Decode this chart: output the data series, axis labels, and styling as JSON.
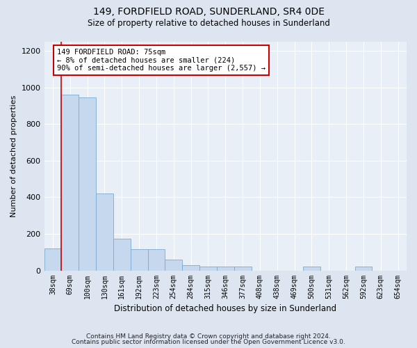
{
  "title": "149, FORDFIELD ROAD, SUNDERLAND, SR4 0DE",
  "subtitle": "Size of property relative to detached houses in Sunderland",
  "xlabel": "Distribution of detached houses by size in Sunderland",
  "ylabel": "Number of detached properties",
  "footer_line1": "Contains HM Land Registry data © Crown copyright and database right 2024.",
  "footer_line2": "Contains public sector information licensed under the Open Government Licence v3.0.",
  "categories": [
    "38sqm",
    "69sqm",
    "100sqm",
    "130sqm",
    "161sqm",
    "192sqm",
    "223sqm",
    "254sqm",
    "284sqm",
    "315sqm",
    "346sqm",
    "377sqm",
    "408sqm",
    "438sqm",
    "469sqm",
    "500sqm",
    "531sqm",
    "562sqm",
    "592sqm",
    "623sqm",
    "654sqm"
  ],
  "values": [
    120,
    960,
    945,
    420,
    175,
    115,
    115,
    60,
    28,
    22,
    22,
    20,
    0,
    0,
    0,
    22,
    0,
    0,
    22,
    0,
    0
  ],
  "bar_color": "#c5d8ee",
  "bar_edge_color": "#7aaad0",
  "vline_color": "#cc0000",
  "vline_x": 0.5,
  "annotation_text": "149 FORDFIELD ROAD: 75sqm\n← 8% of detached houses are smaller (224)\n90% of semi-detached houses are larger (2,557) →",
  "annotation_box_color": "#ffffff",
  "annotation_box_edge": "#cc0000",
  "ylim": [
    0,
    1250
  ],
  "yticks": [
    0,
    200,
    400,
    600,
    800,
    1000,
    1200
  ],
  "bg_color": "#dde6f0",
  "plot_bg_color": "#e8eff7",
  "fig_width": 6.0,
  "fig_height": 5.0
}
